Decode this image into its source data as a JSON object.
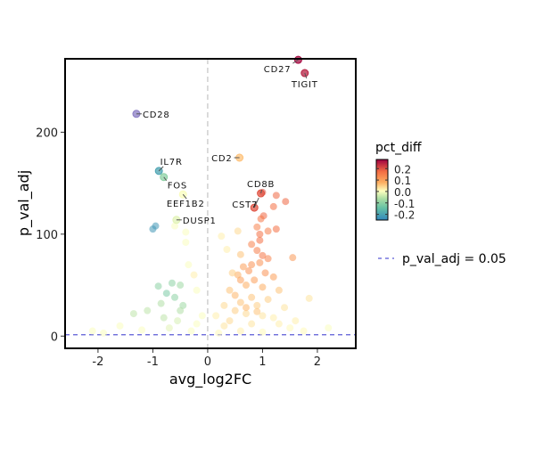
{
  "chart_data": {
    "type": "scatter",
    "title": "",
    "xlabel": "avg_log2FC",
    "ylabel": "p_val_adj",
    "xlim": [
      -2.6,
      2.7
    ],
    "ylim": [
      -12,
      272
    ],
    "x_ticks": [
      -2,
      -1,
      0,
      1,
      2
    ],
    "y_ticks": [
      0,
      100,
      200
    ],
    "grid": false,
    "color_legend": {
      "title": "pct_diff",
      "ticks": [
        0.2,
        0.1,
        0.0,
        -0.1,
        -0.2
      ],
      "range": [
        -0.25,
        0.28
      ],
      "palette": "Spectral"
    },
    "line_legend": {
      "label": "p_val_adj = 0.05",
      "color": "#5b5bd6"
    },
    "threshold_y": 1.3,
    "labeled_points": [
      {
        "gene": "CD27",
        "x": 1.65,
        "y": 271,
        "pct": 0.27,
        "side": "left"
      },
      {
        "gene": "TIGIT",
        "x": 1.77,
        "y": 258,
        "pct": 0.25,
        "side": "below"
      },
      {
        "gene": "CD28",
        "x": -1.3,
        "y": 218,
        "pct": -0.3,
        "side": "right"
      },
      {
        "gene": "CD2",
        "x": 0.58,
        "y": 175,
        "pct": 0.06,
        "side": "left"
      },
      {
        "gene": "IL7R",
        "x": -0.89,
        "y": 162,
        "pct": -0.2,
        "side": "above"
      },
      {
        "gene": "FOS",
        "x": -0.8,
        "y": 156,
        "pct": -0.1,
        "side": "belowright"
      },
      {
        "gene": "CD8B",
        "x": 0.97,
        "y": 140,
        "pct": 0.2,
        "side": "above"
      },
      {
        "gene": "CST7",
        "x": 0.85,
        "y": 126,
        "pct": 0.2,
        "side": "leftbelow"
      },
      {
        "gene": "EEF1B2",
        "x": -0.45,
        "y": 139,
        "pct": 0.0,
        "side": "below"
      },
      {
        "gene": "DUSP1",
        "x": -0.57,
        "y": 114,
        "pct": -0.02,
        "side": "right"
      }
    ],
    "points": [
      [
        1.0,
        141,
        0.2
      ],
      [
        1.25,
        138,
        0.18
      ],
      [
        1.42,
        132,
        0.18
      ],
      [
        1.2,
        127,
        0.17
      ],
      [
        1.02,
        118,
        0.18
      ],
      [
        0.97,
        115,
        0.16
      ],
      [
        1.25,
        105,
        0.17
      ],
      [
        0.9,
        107,
        0.14
      ],
      [
        0.95,
        100,
        0.17
      ],
      [
        0.95,
        94,
        0.17
      ],
      [
        1.1,
        103,
        0.15
      ],
      [
        0.8,
        90,
        0.14
      ],
      [
        0.9,
        84,
        0.15
      ],
      [
        1.0,
        79,
        0.16
      ],
      [
        0.6,
        80,
        0.06
      ],
      [
        1.1,
        76,
        0.14
      ],
      [
        1.55,
        77,
        0.11
      ],
      [
        0.8,
        70,
        0.12
      ],
      [
        0.95,
        72,
        0.12
      ],
      [
        0.65,
        68,
        0.1
      ],
      [
        0.75,
        64,
        0.12
      ],
      [
        1.05,
        62,
        0.12
      ],
      [
        0.55,
        60,
        0.08
      ],
      [
        0.6,
        55,
        0.1
      ],
      [
        0.85,
        55,
        0.1
      ],
      [
        1.2,
        58,
        0.1
      ],
      [
        0.7,
        50,
        0.08
      ],
      [
        1.0,
        48,
        0.08
      ],
      [
        1.3,
        45,
        0.06
      ],
      [
        0.4,
        45,
        0.06
      ],
      [
        0.5,
        40,
        0.07
      ],
      [
        0.8,
        38,
        0.06
      ],
      [
        1.1,
        36,
        0.05
      ],
      [
        0.6,
        33,
        0.06
      ],
      [
        0.3,
        30,
        0.04
      ],
      [
        0.9,
        30,
        0.05
      ],
      [
        1.4,
        28,
        0.03
      ],
      [
        1.85,
        37,
        0.03
      ],
      [
        0.5,
        25,
        0.05
      ],
      [
        0.7,
        22,
        0.04
      ],
      [
        1.0,
        20,
        0.03
      ],
      [
        1.2,
        18,
        0.02
      ],
      [
        1.6,
        15,
        0.02
      ],
      [
        0.4,
        15,
        0.04
      ],
      [
        0.8,
        12,
        0.03
      ],
      [
        0.3,
        10,
        0.03
      ],
      [
        1.5,
        8,
        0.01
      ],
      [
        2.2,
        8,
        0.0
      ],
      [
        0.6,
        5,
        0.02
      ],
      [
        1.0,
        4,
        0.01
      ],
      [
        0.2,
        3,
        0.01
      ],
      [
        0.45,
        62,
        0.05
      ],
      [
        0.25,
        98,
        0.02
      ],
      [
        0.55,
        103,
        0.04
      ],
      [
        0.35,
        85,
        0.02
      ],
      [
        0.7,
        28,
        0.07
      ],
      [
        0.9,
        24,
        0.06
      ],
      [
        1.3,
        12,
        0.02
      ],
      [
        1.75,
        5,
        0.01
      ],
      [
        0.15,
        20,
        0.02
      ],
      [
        -0.95,
        108,
        -0.22
      ],
      [
        -1.0,
        105,
        -0.22
      ],
      [
        -0.6,
        108,
        0.0
      ],
      [
        -0.4,
        102,
        0.0
      ],
      [
        -0.9,
        49,
        -0.1
      ],
      [
        -0.65,
        52,
        -0.1
      ],
      [
        -0.5,
        50,
        -0.08
      ],
      [
        -0.75,
        42,
        -0.12
      ],
      [
        -0.6,
        38,
        -0.1
      ],
      [
        -0.45,
        30,
        -0.08
      ],
      [
        -1.35,
        22,
        -0.05
      ],
      [
        -1.1,
        25,
        -0.05
      ],
      [
        -0.8,
        18,
        -0.05
      ],
      [
        -0.35,
        70,
        0.0
      ],
      [
        -0.5,
        25,
        -0.06
      ],
      [
        -1.6,
        10,
        0.0
      ],
      [
        -2.1,
        5,
        0.0
      ],
      [
        -0.2,
        12,
        0.0
      ],
      [
        -0.3,
        5,
        0.0
      ],
      [
        -0.7,
        8,
        -0.02
      ],
      [
        -1.2,
        6,
        0.0
      ],
      [
        -0.1,
        20,
        0.0
      ],
      [
        -0.2,
        45,
        0.0
      ],
      [
        -0.25,
        60,
        0.02
      ],
      [
        -0.55,
        15,
        -0.03
      ],
      [
        -0.85,
        32,
        -0.06
      ],
      [
        -0.4,
        92,
        0.0
      ],
      [
        -1.9,
        3,
        0.0
      ]
    ]
  }
}
